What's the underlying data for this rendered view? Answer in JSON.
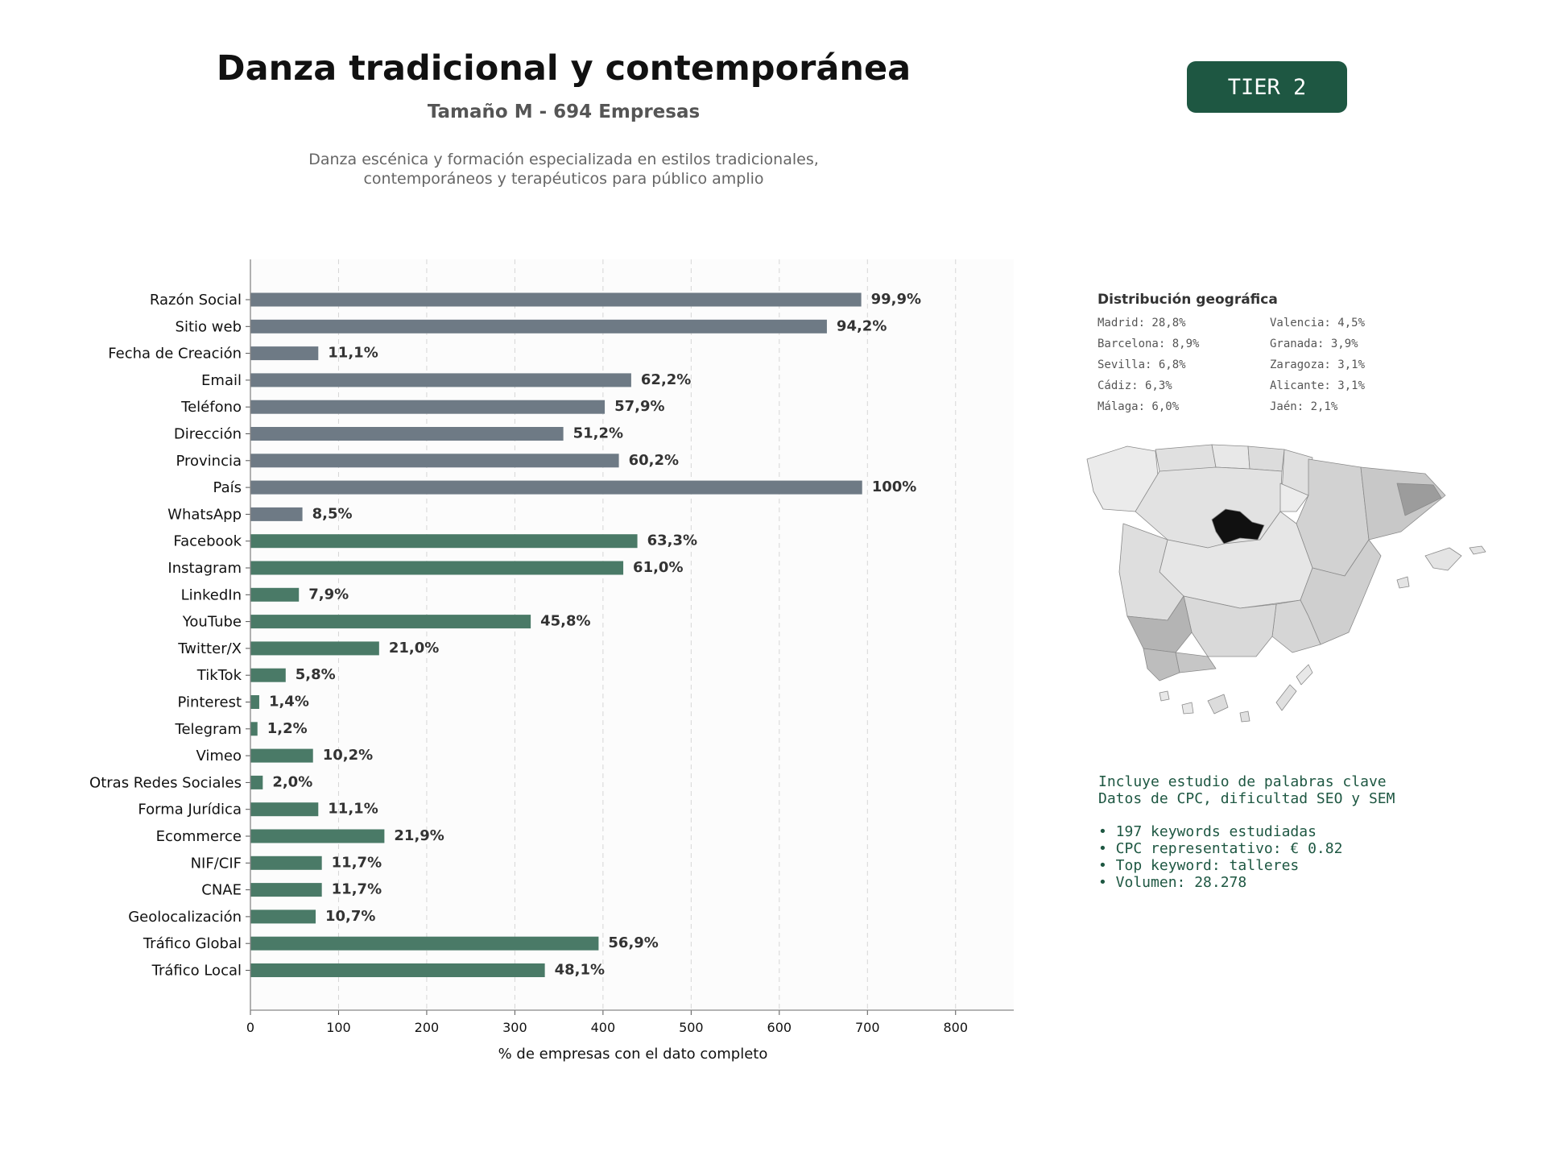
{
  "header": {
    "title": "Danza tradicional y contemporánea",
    "subtitle": "Tamaño M - 694 Empresas",
    "description_line1": "Danza escénica y formación especializada en estilos tradicionales,",
    "description_line2": "contemporáneos y terapéuticos para público amplio",
    "tier_badge": "TIER 2"
  },
  "chart_data": {
    "type": "bar",
    "orientation": "horizontal",
    "categories": [
      "Razón Social",
      "Sitio web",
      "Fecha de Creación",
      "Email",
      "Teléfono",
      "Dirección",
      "Provincia",
      "País",
      "WhatsApp",
      "Facebook",
      "Instagram",
      "LinkedIn",
      "YouTube",
      "Twitter/X",
      "TikTok",
      "Pinterest",
      "Telegram",
      "Vimeo",
      "Otras Redes Sociales",
      "Forma Jurídica",
      "Ecommerce",
      "NIF/CIF",
      "CNAE",
      "Geolocalización",
      "Tráfico Global",
      "Tráfico Local"
    ],
    "values": [
      693,
      654,
      77,
      432,
      402,
      355,
      418,
      694,
      59,
      439,
      423,
      55,
      318,
      146,
      40,
      10,
      8,
      71,
      14,
      77,
      152,
      81,
      81,
      74,
      395,
      334
    ],
    "data_labels": [
      "99,9%",
      "94,2%",
      "11,1%",
      "62,2%",
      "57,9%",
      "51,2%",
      "60,2%",
      "100%",
      "8,5%",
      "63,3%",
      "61,0%",
      "7,9%",
      "45,8%",
      "21,0%",
      "5,8%",
      "1,4%",
      "1,2%",
      "10,2%",
      "2,0%",
      "11,1%",
      "21,9%",
      "11,7%",
      "11,7%",
      "10,7%",
      "56,9%",
      "48,1%"
    ],
    "bar_groups": [
      {
        "range": [
          0,
          8
        ],
        "color": "#6e7a85"
      },
      {
        "range": [
          9,
          25
        ],
        "color": "#4a7a67"
      }
    ],
    "xlabel": "% de empresas con el dato completo",
    "ylabel": "",
    "xlim": [
      0,
      866
    ],
    "xticks": [
      0,
      100,
      200,
      300,
      400,
      500,
      600,
      700,
      800
    ],
    "grid": "vertical dashed"
  },
  "geo": {
    "title": "Distribución geográfica",
    "entries": [
      "Madrid: 28,8%",
      "Valencia: 4,5%",
      "Barcelona: 8,9%",
      "Granada: 3,9%",
      "Sevilla: 6,8%",
      "Zaragoza: 3,1%",
      "Cádiz: 6,3%",
      "Alicante: 3,1%",
      "Málaga: 6,0%",
      "Jaén: 2,1%"
    ]
  },
  "keywords": {
    "line1": "Incluye estudio de palabras clave",
    "line2": "Datos de CPC, dificultad SEO y SEM",
    "bullets": [
      "• 197 keywords estudiadas",
      "• CPC representativo: € 0.82",
      "• Top keyword: talleres",
      "• Volumen: 28.278"
    ]
  }
}
